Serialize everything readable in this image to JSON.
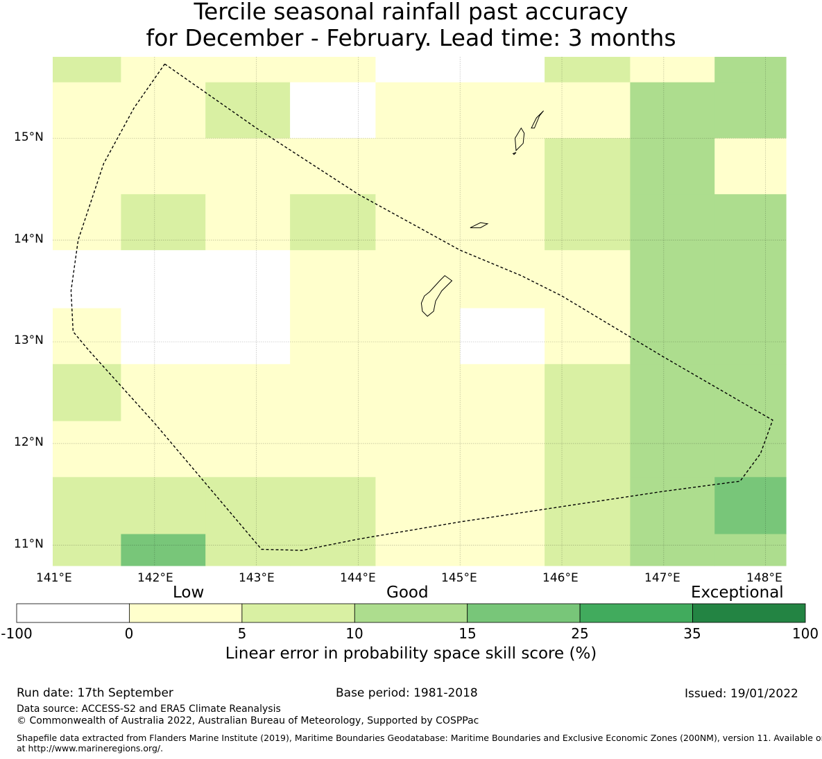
{
  "title": {
    "line1": "Tercile seasonal rainfall past accuracy",
    "line2": "for December - February. Lead time: 3 months"
  },
  "map": {
    "lon_range": [
      141,
      148.2
    ],
    "lat_range": [
      10.8,
      15.8
    ],
    "lon_labels": [
      "141°E",
      "142°E",
      "143°E",
      "144°E",
      "145°E",
      "146°E",
      "147°E",
      "148°E"
    ],
    "lat_labels": [
      "15°N",
      "14°N",
      "13°N",
      "12°N",
      "11°N"
    ],
    "grid_lons": [
      142,
      143,
      144,
      145,
      146,
      147,
      148
    ],
    "grid_lats": [
      11,
      12,
      13,
      14,
      15
    ],
    "cell_lon_edges": [
      141,
      141.67,
      142.5,
      143.33,
      144.17,
      145,
      145.83,
      146.67,
      147.5,
      148.2
    ],
    "cell_lat_edges": [
      15.8,
      15.55,
      15.0,
      14.45,
      13.9,
      13.33,
      12.78,
      12.22,
      11.67,
      11.11,
      10.8
    ],
    "skill_classes": [
      [
        2,
        1,
        1,
        1,
        0,
        0,
        2,
        1,
        3
      ],
      [
        1,
        1,
        2,
        0,
        1,
        1,
        1,
        3,
        3
      ],
      [
        1,
        1,
        1,
        1,
        1,
        1,
        2,
        3,
        1
      ],
      [
        1,
        2,
        1,
        2,
        1,
        1,
        2,
        3,
        3
      ],
      [
        0,
        0,
        0,
        1,
        1,
        1,
        1,
        3,
        3
      ],
      [
        1,
        0,
        0,
        1,
        1,
        0,
        1,
        3,
        3
      ],
      [
        2,
        1,
        1,
        1,
        1,
        1,
        2,
        3,
        3
      ],
      [
        1,
        1,
        1,
        1,
        1,
        1,
        2,
        3,
        3
      ],
      [
        2,
        2,
        2,
        2,
        1,
        1,
        2,
        3,
        4
      ],
      [
        2,
        4,
        2,
        2,
        1,
        1,
        2,
        3,
        3
      ]
    ],
    "boundary": [
      [
        142.1,
        15.73
      ],
      [
        143.0,
        15.1
      ],
      [
        144.0,
        14.45
      ],
      [
        145.0,
        13.9
      ],
      [
        145.6,
        13.65
      ],
      [
        146.0,
        13.45
      ],
      [
        147.0,
        12.85
      ],
      [
        148.07,
        12.23
      ],
      [
        147.95,
        11.9
      ],
      [
        147.75,
        11.63
      ],
      [
        147.0,
        11.53
      ],
      [
        146.0,
        11.38
      ],
      [
        145.0,
        11.23
      ],
      [
        144.0,
        11.06
      ],
      [
        143.45,
        10.95
      ],
      [
        143.05,
        10.96
      ],
      [
        142.0,
        12.2
      ],
      [
        141.35,
        12.92
      ],
      [
        141.2,
        13.1
      ],
      [
        141.18,
        13.5
      ],
      [
        141.25,
        14.0
      ],
      [
        141.5,
        14.75
      ],
      [
        141.8,
        15.3
      ],
      [
        142.1,
        15.73
      ]
    ],
    "islands": [
      [
        [
          144.63,
          13.3
        ],
        [
          144.62,
          13.38
        ],
        [
          144.65,
          13.45
        ],
        [
          144.7,
          13.49
        ],
        [
          144.8,
          13.6
        ],
        [
          144.85,
          13.65
        ],
        [
          144.92,
          13.6
        ],
        [
          144.82,
          13.5
        ],
        [
          144.76,
          13.4
        ],
        [
          144.74,
          13.3
        ],
        [
          144.68,
          13.25
        ],
        [
          144.63,
          13.3
        ]
      ],
      [
        [
          145.1,
          14.12
        ],
        [
          145.2,
          14.17
        ],
        [
          145.27,
          14.16
        ],
        [
          145.2,
          14.12
        ],
        [
          145.1,
          14.12
        ]
      ],
      [
        [
          145.55,
          14.88
        ],
        [
          145.62,
          14.95
        ],
        [
          145.63,
          15.05
        ],
        [
          145.6,
          15.1
        ],
        [
          145.54,
          15.0
        ],
        [
          145.55,
          14.88
        ]
      ],
      [
        [
          145.7,
          15.1
        ],
        [
          145.75,
          15.2
        ],
        [
          145.82,
          15.27
        ],
        [
          145.78,
          15.22
        ],
        [
          145.73,
          15.1
        ],
        [
          145.7,
          15.1
        ]
      ],
      [
        [
          145.52,
          14.85
        ],
        [
          145.55,
          14.86
        ],
        [
          145.53,
          14.84
        ],
        [
          145.52,
          14.85
        ]
      ]
    ]
  },
  "colorbar": {
    "category_labels": [
      "Low",
      "Good",
      "Exceptional"
    ],
    "ticks": [
      "-100",
      "0",
      "5",
      "10",
      "15",
      "25",
      "35",
      "100"
    ],
    "colors": [
      "#ffffff",
      "#ffffcc",
      "#d9f0a3",
      "#addd8e",
      "#78c679",
      "#41ab5d",
      "#238443"
    ],
    "xlabel": "Linear error in probability space skill score (%)"
  },
  "footer": {
    "run_date": "Run date: 17th September",
    "base_period": "Base period: 1981-2018",
    "issued": "Issued: 19/01/2022",
    "data_source": "Data source: ACCESS-S2 and ERA5 Climate Reanalysis",
    "copyright": "© Commonwealth of Australia 2022, Australian Bureau of Meteorology, Supported by COSPPac",
    "shapefile_line1": "Shapefile data extracted from Flanders Marine Institute (2019), Maritime Boundaries Geodatabase: Maritime Boundaries and Exclusive Economic Zones (200NM), version 11. Available online",
    "shapefile_line2": "at http://www.marineregions.org/."
  }
}
